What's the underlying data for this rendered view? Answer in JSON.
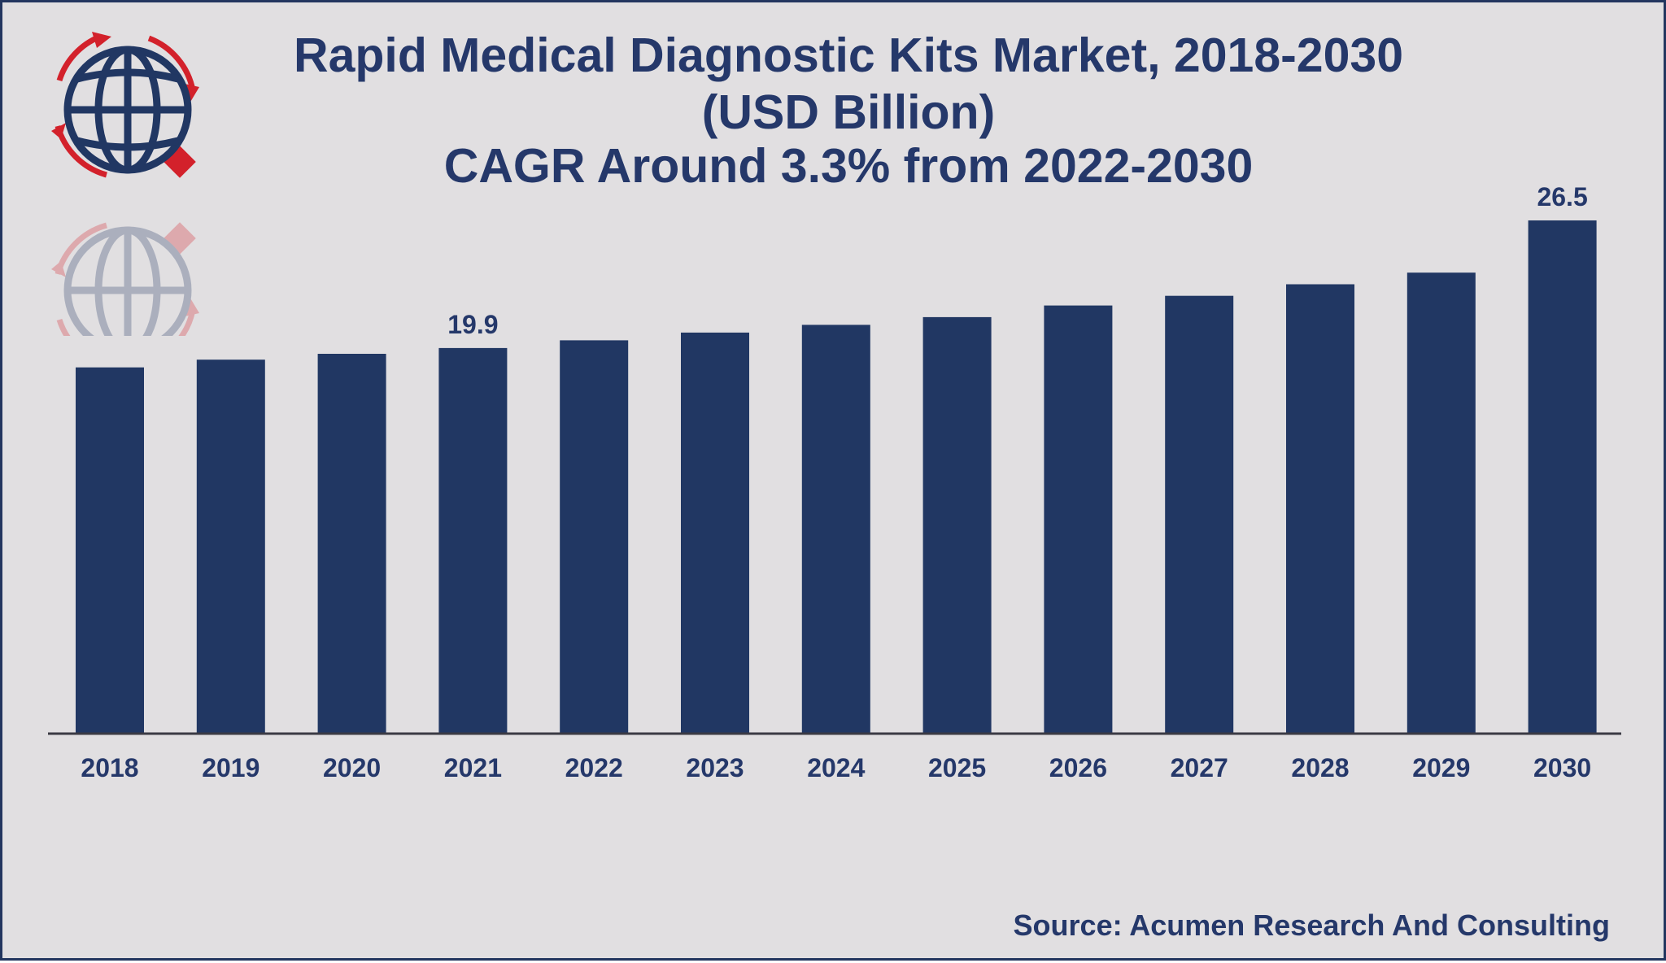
{
  "title_lines": [
    "Rapid Medical Diagnostic Kits Market, 2018-2030",
    "(USD Billion)",
    "CAGR Around 3.3% from 2022-2030"
  ],
  "source": "Source: Acumen Research And Consulting",
  "colors": {
    "background": "#e1dfe1",
    "bar": "#213763",
    "text": "#25386a",
    "logo_red": "#d3212b",
    "logo_blue": "#213763"
  },
  "logo": {
    "icon": "globe-with-arrows-icon"
  },
  "chart_data": {
    "type": "bar",
    "title": "Rapid Medical Diagnostic Kits Market, 2018-2030",
    "xlabel": "",
    "ylabel": "",
    "categories": [
      "2018",
      "2019",
      "2020",
      "2021",
      "2022",
      "2023",
      "2024",
      "2025",
      "2026",
      "2027",
      "2028",
      "2029",
      "2030"
    ],
    "values": [
      18.9,
      19.3,
      19.6,
      19.9,
      20.3,
      20.7,
      21.1,
      21.5,
      22.1,
      22.6,
      23.2,
      23.8,
      26.5
    ],
    "data_labels": [
      {
        "category": "2021",
        "text": "19.9"
      },
      {
        "category": "2030",
        "text": "26.5"
      }
    ],
    "ylim": [
      0,
      29
    ],
    "grid": false,
    "legend": "none"
  }
}
